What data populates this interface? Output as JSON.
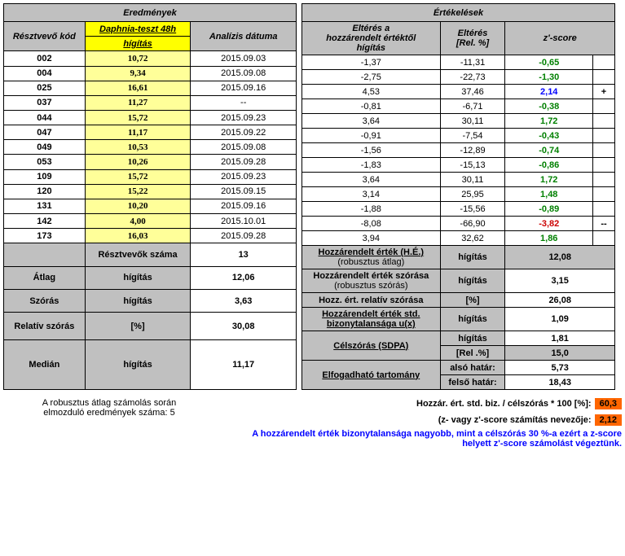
{
  "left": {
    "title": "Eredmények",
    "col1": "Résztvevő kód",
    "col2_line1": "Daphnia-teszt 48h",
    "col2_line2": "hígítás",
    "col3": "Analízis dátuma",
    "rows": [
      {
        "code": "002",
        "val": "10,72",
        "date": "2015.09.03"
      },
      {
        "code": "004",
        "val": "9,34",
        "date": "2015.09.08"
      },
      {
        "code": "025",
        "val": "16,61",
        "date": "2015.09.16"
      },
      {
        "code": "037",
        "val": "11,27",
        "date": "--"
      },
      {
        "code": "044",
        "val": "15,72",
        "date": "2015.09.23"
      },
      {
        "code": "047",
        "val": "11,17",
        "date": "2015.09.22"
      },
      {
        "code": "049",
        "val": "10,53",
        "date": "2015.09.08"
      },
      {
        "code": "053",
        "val": "10,26",
        "date": "2015.09.28"
      },
      {
        "code": "109",
        "val": "15,72",
        "date": "2015.09.23"
      },
      {
        "code": "120",
        "val": "15,22",
        "date": "2015.09.15"
      },
      {
        "code": "131",
        "val": "10,20",
        "date": "2015.09.16"
      },
      {
        "code": "142",
        "val": "4,00",
        "date": "2015.10.01"
      },
      {
        "code": "173",
        "val": "16,03",
        "date": "2015.09.28"
      }
    ],
    "stats": [
      {
        "l": "",
        "m": "Résztvevők száma",
        "v": "13"
      },
      {
        "l": "Átlag",
        "m": "hígítás",
        "v": "12,06"
      },
      {
        "l": "Szórás",
        "m": "hígítás",
        "v": "3,63"
      },
      {
        "l": "Relatív szórás",
        "m": "[%]",
        "v": "30,08"
      },
      {
        "l": "Medián",
        "m": "hígítás",
        "v": "11,17"
      }
    ]
  },
  "right": {
    "title": "Értékelések",
    "col1_line1": "Eltérés a",
    "col1_line2": "hozzárendelt értéktől",
    "col1_line3": "hígítás",
    "col2_line1": "Eltérés",
    "col2_line2": "[Rel. %]",
    "col3": "z'-score",
    "rows": [
      {
        "d": "-1,37",
        "r": "-11,31",
        "z": "-0,65",
        "cls": "green",
        "flag": ""
      },
      {
        "d": "-2,75",
        "r": "-22,73",
        "z": "-1,30",
        "cls": "green",
        "flag": ""
      },
      {
        "d": "4,53",
        "r": "37,46",
        "z": "2,14",
        "cls": "blue",
        "flag": "+"
      },
      {
        "d": "-0,81",
        "r": "-6,71",
        "z": "-0,38",
        "cls": "green",
        "flag": ""
      },
      {
        "d": "3,64",
        "r": "30,11",
        "z": "1,72",
        "cls": "green",
        "flag": ""
      },
      {
        "d": "-0,91",
        "r": "-7,54",
        "z": "-0,43",
        "cls": "green",
        "flag": ""
      },
      {
        "d": "-1,56",
        "r": "-12,89",
        "z": "-0,74",
        "cls": "green",
        "flag": ""
      },
      {
        "d": "-1,83",
        "r": "-15,13",
        "z": "-0,86",
        "cls": "green",
        "flag": ""
      },
      {
        "d": "3,64",
        "r": "30,11",
        "z": "1,72",
        "cls": "green",
        "flag": ""
      },
      {
        "d": "3,14",
        "r": "25,95",
        "z": "1,48",
        "cls": "green",
        "flag": ""
      },
      {
        "d": "-1,88",
        "r": "-15,56",
        "z": "-0,89",
        "cls": "green",
        "flag": ""
      },
      {
        "d": "-8,08",
        "r": "-66,90",
        "z": "-3,82",
        "cls": "red",
        "flag": "--"
      },
      {
        "d": "3,94",
        "r": "32,62",
        "z": "1,86",
        "cls": "green",
        "flag": ""
      }
    ],
    "stats": {
      "assigned_label_line1": "Hozzárendelt érték (H.É.)",
      "assigned_label_line2": "(robusztus átlag)",
      "assigned_unit": "hígítás",
      "assigned_val": "12,08",
      "spread_label_line1": "Hozzárendelt érték szórása",
      "spread_label_line2": "(robusztus szórás)",
      "spread_unit": "hígítás",
      "spread_val": "3,15",
      "relsp_label": "Hozz. ért. relatív szórása",
      "relsp_unit": "[%]",
      "relsp_val": "26,08",
      "unc_label_line1": "Hozzárendelt érték std.",
      "unc_label_line2": "bizonytalansága  u(x)",
      "unc_unit": "hígítás",
      "unc_val": "1,09",
      "target_label": "Célszórás  (SDPA)",
      "target_unit1": "hígítás",
      "target_val1": "1,81",
      "target_unit2": "[Rel .%]",
      "target_val2": "15,0",
      "range_label": "Elfogadható tartomány",
      "range_low_label": "alsó határ:",
      "range_low_val": "5,73",
      "range_high_label": "felső határ:",
      "range_high_val": "18,43"
    }
  },
  "footer": {
    "left_line1": "A robusztus átlag számolás során",
    "left_line2": "elmozduló eredmények száma: 5",
    "right1_label": "Hozzár. ért. std. biz.  / célszórás * 100 [%]:",
    "right1_val": "60,3",
    "right2_label": "(z- vagy z'-score számítás nevezője:",
    "right2_val": "2,12",
    "right3": "A hozzárendelt érték bizonytalansága nagyobb, mint a célszórás 30 %-a ezért a z-score helyett z'-score számolást végeztünk."
  }
}
